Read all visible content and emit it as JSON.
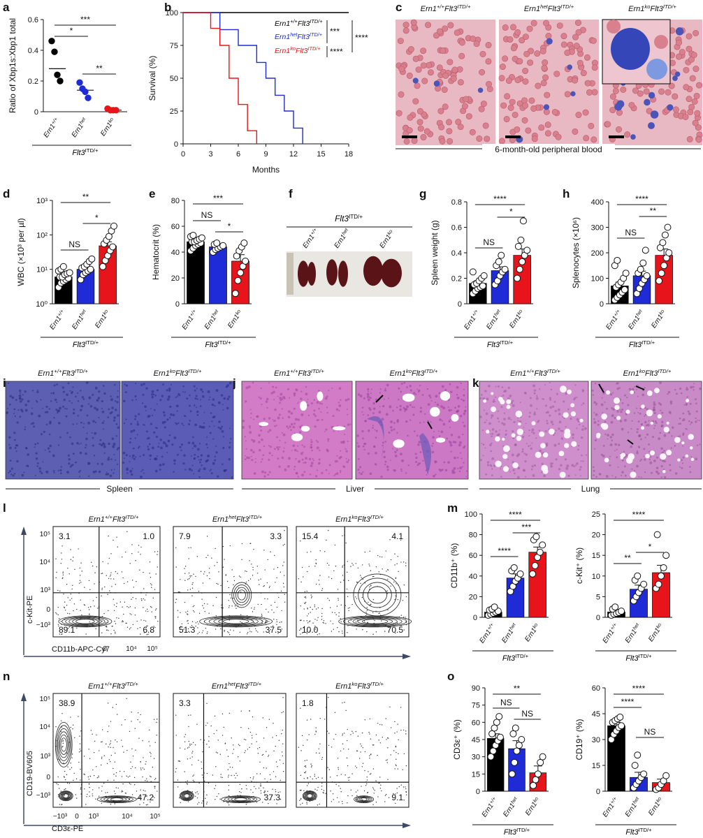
{
  "colors": {
    "wt": "#000000",
    "het": "#1f2bd6",
    "ko": "#e8141c",
    "axis": "#111111",
    "arrow": "#3d4a66"
  },
  "panel_letters": [
    "a",
    "b",
    "c",
    "d",
    "e",
    "f",
    "g",
    "h",
    "i",
    "j",
    "k",
    "l",
    "m",
    "n",
    "o"
  ],
  "genotype": {
    "wt": "Ern1+/+",
    "het": "Ern1het",
    "ko": "Ern1ko",
    "flt3": "Flt3ITD/+"
  },
  "panel_a": {
    "ylabel": "Ratio of Xbp1s:Xbp1 total",
    "sig": [
      "*",
      "***",
      "**"
    ]
  },
  "panel_b": {
    "legend": [
      "Ern1+/+Flt3ITD/+",
      "Ern1hetFlt3ITD/+",
      "Ern1koFlt3ITD/+"
    ],
    "sig": [
      "***",
      "****",
      "****"
    ]
  },
  "panel_c": {
    "titles": [
      "Ern1+/+Flt3ITD/+",
      "Ern1hetFlt3ITD/+",
      "Ern1koFlt3ITD/+"
    ],
    "caption": "6-month-old peripheral blood"
  },
  "panel_d": {
    "sig": [
      "**",
      "NS",
      "*"
    ]
  },
  "panel_e": {
    "sig": [
      "***",
      "NS",
      "*"
    ]
  },
  "panel_f": {
    "header": "Flt3ITD/+",
    "labels": [
      "Ern1+/+",
      "Ern1het",
      "Ern1ko"
    ]
  },
  "panel_g": {
    "sig": [
      "****",
      "*",
      "NS"
    ]
  },
  "panel_h": {
    "sig": [
      "****",
      "**",
      "NS"
    ]
  },
  "histology": {
    "i_titles": [
      "Ern1+/+Flt3ITD/+",
      "Ern1koFlt3ITD/+"
    ],
    "i_caption": "Spleen",
    "j_titles": [
      "Ern1+/+Flt3ITD/+",
      "Ern1koFlt3ITD/+"
    ],
    "j_caption": "Liver",
    "k_titles": [
      "Ern1+/+Flt3ITD/+",
      "Ern1koFlt3ITD/+"
    ],
    "k_caption": "Lung"
  },
  "flow_l": {
    "titles": [
      "Ern1+/+Flt3ITD/+",
      "Ern1hetFlt3ITD/+",
      "Ern1koFlt3ITD/+"
    ],
    "ylabel": "c-Kit-PE",
    "xlabel": "CD11b-APC-Cy7",
    "yticks": [
      "10⁵",
      "10⁴",
      "10³",
      "0",
      "−10³"
    ],
    "xticks": [
      "0",
      "10⁴",
      "10⁵"
    ],
    "quadrants": [
      {
        "tl": "3.1",
        "tr": "1.0",
        "bl": "89.1",
        "br": "6.8"
      },
      {
        "tl": "7.9",
        "tr": "3.3",
        "bl": "51.3",
        "br": "37.5"
      },
      {
        "tl": "15.4",
        "tr": "4.1",
        "bl": "10.0",
        "br": "70.5"
      }
    ]
  },
  "flow_n": {
    "titles": [
      "Ern1+/+Flt3ITD/+",
      "Ern1hetFlt3ITD/+",
      "Ern1koFlt3ITD/+"
    ],
    "ylabel": "CD19-BV605",
    "xlabel": "CD3ε-PE",
    "yticks": [
      "10⁵",
      "10⁴",
      "10³",
      "0",
      "−10³"
    ],
    "xticks": [
      "−10³",
      "0",
      "10³",
      "10⁴",
      "10⁵"
    ],
    "quadrants": [
      {
        "tl": "38.9",
        "br": "47.2"
      },
      {
        "tl": "3.3",
        "br": "37.3"
      },
      {
        "tl": "1.8",
        "br": "9.1"
      }
    ]
  },
  "panel_m": {
    "sig_left": [
      "****",
      "***",
      "****"
    ],
    "sig_right": [
      "****",
      "*",
      "**"
    ]
  },
  "panel_o": {
    "sig_left": [
      "**",
      "NS",
      "NS"
    ],
    "sig_right": [
      "****",
      "****",
      "NS"
    ]
  },
  "chart_data": [
    {
      "panel": "a",
      "type": "scatter",
      "ylabel": "Ratio of Xbp1s:Xbp1 total",
      "ylim": [
        0,
        0.6
      ],
      "yticks": [
        0,
        0.2,
        0.4,
        0.6
      ],
      "categories": [
        "Ern1+/+",
        "Ern1het",
        "Ern1ko"
      ],
      "group_label": "Flt3ITD/+",
      "points": [
        [
          0.46,
          0.39,
          0.24,
          0.2
        ],
        [
          0.19,
          0.15,
          0.13,
          0.09
        ],
        [
          0.02,
          0.01,
          0.01,
          0.01
        ]
      ],
      "means": [
        0.28,
        0.14,
        0.01
      ]
    },
    {
      "panel": "b",
      "type": "line",
      "xlabel": "Months",
      "ylabel": "Survival (%)",
      "xlim": [
        0,
        18
      ],
      "ylim": [
        0,
        100
      ],
      "xticks": [
        0,
        3,
        6,
        9,
        12,
        15,
        18
      ],
      "yticks": [
        0,
        25,
        50,
        75,
        100
      ],
      "series": [
        {
          "name": "Ern1+/+Flt3ITD/+",
          "x": [
            0,
            18
          ],
          "y": [
            100,
            100
          ]
        },
        {
          "name": "Ern1hetFlt3ITD/+",
          "x": [
            0,
            4,
            4,
            6,
            6,
            8,
            8,
            9,
            9,
            10,
            10,
            11,
            11,
            12,
            12,
            13,
            13
          ],
          "y": [
            100,
            100,
            87,
            87,
            75,
            75,
            62,
            62,
            50,
            50,
            37,
            37,
            25,
            25,
            12,
            12,
            0
          ]
        },
        {
          "name": "Ern1koFlt3ITD/+",
          "x": [
            0,
            3,
            3,
            4,
            4,
            5,
            5,
            6,
            6,
            7,
            7,
            8,
            8
          ],
          "y": [
            100,
            100,
            88,
            88,
            75,
            75,
            50,
            50,
            30,
            30,
            10,
            10,
            0
          ]
        }
      ]
    },
    {
      "panel": "d",
      "type": "bar",
      "ylabel": "WBC (×10³ per µl)",
      "yscale": "log",
      "ylim": [
        1,
        1000
      ],
      "yticks": [
        "10⁰",
        "10¹",
        "10²",
        "10³"
      ],
      "categories": [
        "Ern1+/+",
        "Ern1het",
        "Ern1ko"
      ],
      "group_label": "Flt3ITD/+",
      "values": [
        6,
        10,
        48
      ],
      "errors": [
        1,
        2,
        15
      ],
      "points": [
        [
          3,
          4,
          4.5,
          5,
          5.5,
          6,
          6,
          7,
          7.5,
          8,
          9,
          10,
          12
        ],
        [
          5,
          7,
          8,
          9,
          10,
          11,
          12,
          14,
          17,
          20
        ],
        [
          12,
          18,
          25,
          35,
          45,
          55,
          70,
          90,
          130,
          180
        ]
      ]
    },
    {
      "panel": "e",
      "type": "bar",
      "ylabel": "Hematocrit (%)",
      "ylim": [
        0,
        80
      ],
      "yticks": [
        0,
        20,
        40,
        60,
        80
      ],
      "categories": [
        "Ern1+/+",
        "Ern1het",
        "Ern1ko"
      ],
      "group_label": "Flt3ITD/+",
      "values": [
        48,
        44,
        33
      ],
      "errors": [
        1.5,
        1.5,
        5
      ],
      "points": [
        [
          41,
          43,
          45,
          46,
          47,
          48,
          48,
          49,
          50,
          51,
          52,
          53
        ],
        [
          40,
          42,
          43,
          44,
          45,
          46,
          47
        ],
        [
          8,
          18,
          24,
          29,
          33,
          37,
          41,
          44,
          47
        ]
      ]
    },
    {
      "panel": "g",
      "type": "bar",
      "ylabel": "Spleen weight (g)",
      "ylim": [
        0,
        0.8
      ],
      "yticks": [
        0,
        0.2,
        0.4,
        0.6,
        0.8
      ],
      "categories": [
        "Ern1+/+",
        "Ern1het",
        "Ern1ko"
      ],
      "group_label": "Flt3ITD/+",
      "values": [
        0.16,
        0.26,
        0.38
      ],
      "errors": [
        0.02,
        0.03,
        0.05
      ],
      "points": [
        [
          0.08,
          0.1,
          0.12,
          0.13,
          0.14,
          0.15,
          0.16,
          0.18,
          0.2,
          0.22,
          0.25
        ],
        [
          0.15,
          0.18,
          0.22,
          0.25,
          0.27,
          0.3,
          0.33,
          0.38
        ],
        [
          0.2,
          0.27,
          0.33,
          0.38,
          0.42,
          0.45,
          0.5,
          0.65
        ]
      ]
    },
    {
      "panel": "h",
      "type": "bar",
      "ylabel": "Splenocytes (×10⁶)",
      "ylim": [
        0,
        400
      ],
      "yticks": [
        0,
        100,
        200,
        300,
        400
      ],
      "categories": [
        "Ern1+/+",
        "Ern1het",
        "Ern1ko"
      ],
      "group_label": "Flt3ITD/+",
      "values": [
        70,
        110,
        190
      ],
      "errors": [
        15,
        18,
        25
      ],
      "points": [
        [
          15,
          25,
          35,
          45,
          55,
          65,
          75,
          85,
          100,
          120,
          150,
          170
        ],
        [
          40,
          60,
          80,
          95,
          110,
          120,
          135,
          160,
          210
        ],
        [
          90,
          120,
          150,
          180,
          200,
          220,
          240,
          270,
          300
        ]
      ]
    },
    {
      "panel": "m-left",
      "type": "bar",
      "ylabel": "CD11b⁺ (%)",
      "ylim": [
        0,
        100
      ],
      "yticks": [
        0,
        20,
        40,
        60,
        80,
        100
      ],
      "categories": [
        "Ern1+/+",
        "Ern1het",
        "Ern1ko"
      ],
      "group_label": "Flt3ITD/+",
      "values": [
        5,
        38,
        63
      ],
      "errors": [
        1,
        4,
        5
      ],
      "points": [
        [
          2,
          3,
          4,
          5,
          6,
          7,
          8,
          10
        ],
        [
          25,
          30,
          35,
          38,
          42,
          45,
          48
        ],
        [
          42,
          50,
          58,
          63,
          70,
          75,
          78
        ]
      ]
    },
    {
      "panel": "m-right",
      "type": "bar",
      "ylabel": "c-Kit⁺ (%)",
      "ylim": [
        0,
        25
      ],
      "yticks": [
        0,
        5,
        10,
        15,
        20,
        25
      ],
      "categories": [
        "Ern1+/+",
        "Ern1het",
        "Ern1ko"
      ],
      "group_label": "Flt3ITD/+",
      "values": [
        1.3,
        6.8,
        10.8
      ],
      "errors": [
        0.3,
        1.0,
        1.8
      ],
      "points": [
        [
          0.5,
          0.8,
          1,
          1.2,
          1.5,
          2,
          2.5
        ],
        [
          4,
          5,
          6,
          7,
          8,
          9,
          10
        ],
        [
          7,
          8,
          10,
          12,
          15,
          20
        ]
      ]
    },
    {
      "panel": "o-left",
      "type": "bar",
      "ylabel": "CD3ε⁺ (%)",
      "ylim": [
        0,
        90
      ],
      "yticks": [
        0,
        15,
        30,
        45,
        60,
        75,
        90
      ],
      "categories": [
        "Ern1+/+",
        "Ern1het",
        "Ern1ko"
      ],
      "group_label": "Flt3ITD/+",
      "values": [
        46,
        37,
        16
      ],
      "errors": [
        4,
        7,
        6
      ],
      "points": [
        [
          30,
          35,
          40,
          44,
          47,
          50,
          55,
          60,
          65
        ],
        [
          15,
          25,
          35,
          40,
          45,
          50,
          55
        ],
        [
          5,
          10,
          15,
          25,
          30
        ]
      ]
    },
    {
      "panel": "o-right",
      "type": "bar",
      "ylabel": "CD19⁺ (%)",
      "ylim": [
        0,
        60
      ],
      "yticks": [
        0,
        15,
        30,
        45,
        60
      ],
      "categories": [
        "Ern1+/+",
        "Ern1het",
        "Ern1ko"
      ],
      "group_label": "Flt3ITD/+",
      "values": [
        38,
        8,
        5
      ],
      "errors": [
        2,
        3,
        2
      ],
      "points": [
        [
          30,
          33,
          35,
          37,
          38,
          40,
          41,
          42,
          43
        ],
        [
          2,
          4,
          6,
          8,
          10,
          15,
          21
        ],
        [
          1,
          2,
          4,
          6,
          9
        ]
      ]
    }
  ]
}
